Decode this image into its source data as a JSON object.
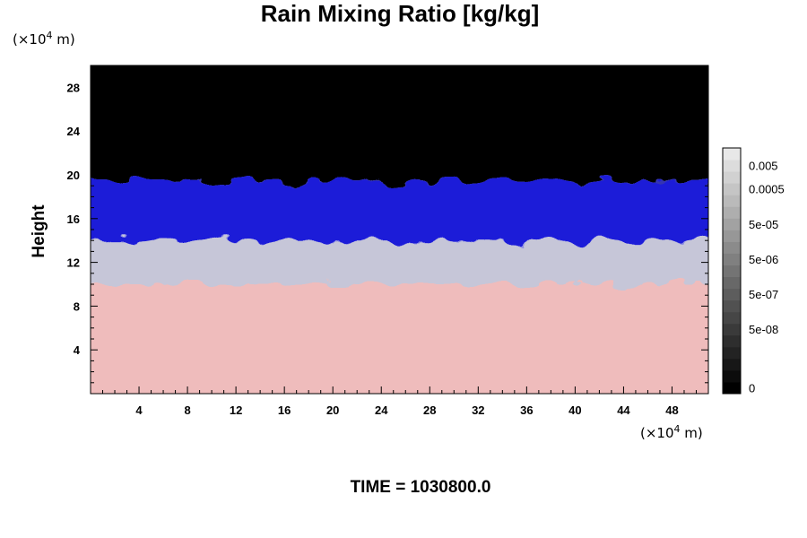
{
  "chart_data": {
    "type": "heatmap",
    "title": "Rain Mixing Ratio [kg/kg]",
    "ylabel": "Height",
    "xlabel": "",
    "x_unit_prefix": "(×10",
    "x_unit_exp": "4",
    "x_unit_suffix": " m)",
    "y_unit_prefix": "(×10",
    "y_unit_exp": "4",
    "y_unit_suffix": " m)",
    "xlim": [
      0,
      51
    ],
    "ylim": [
      0,
      30
    ],
    "x_ticks": [
      4,
      8,
      12,
      16,
      20,
      24,
      28,
      32,
      36,
      40,
      44,
      48
    ],
    "y_ticks": [
      4,
      8,
      12,
      16,
      20,
      24,
      28
    ],
    "grid": false,
    "layers": [
      {
        "name": "lower",
        "y_from": 0,
        "y_to": 10,
        "color": "#efbcbc"
      },
      {
        "name": "transition",
        "y_from": 10,
        "y_to": 14,
        "color": "#c6c6d8"
      },
      {
        "name": "middle",
        "y_from": 14,
        "y_to": 19.5,
        "color": "#1a1ad8"
      },
      {
        "name": "upper",
        "y_from": 19.5,
        "y_to": 30,
        "color": "#000000"
      }
    ],
    "colorbar": {
      "levels": 21,
      "labels": [
        {
          "text": "0.005",
          "level": 19
        },
        {
          "text": "0.0005",
          "level": 17
        },
        {
          "text": "5e-05",
          "level": 14
        },
        {
          "text": "5e-06",
          "level": 11
        },
        {
          "text": "5e-07",
          "level": 8
        },
        {
          "text": "5e-08",
          "level": 5
        },
        {
          "text": "0",
          "level": 0
        }
      ]
    },
    "annotation": "TIME = 1030800.0"
  }
}
